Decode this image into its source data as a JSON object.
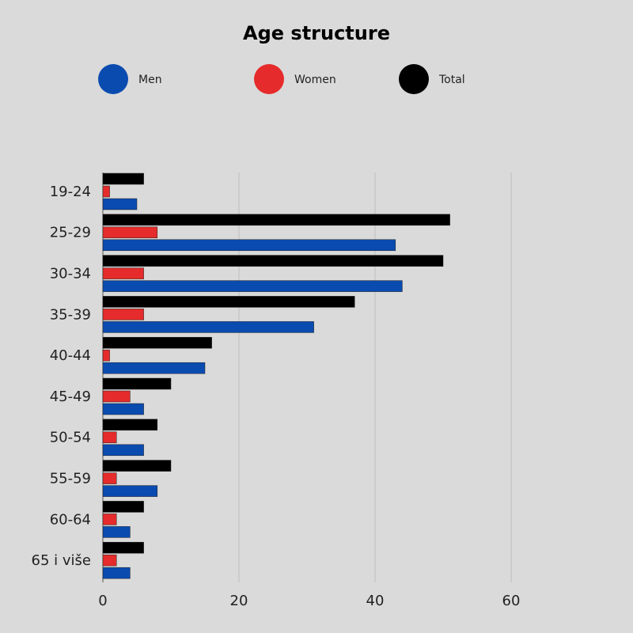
{
  "chart_data": {
    "type": "bar",
    "orientation": "horizontal",
    "title": "Age structure",
    "xlabel": "",
    "ylabel": "",
    "categories": [
      "19-24",
      "25-29",
      "30-34",
      "35-39",
      "40-44",
      "45-49",
      "50-54",
      "55-59",
      "60-64",
      "65 i više"
    ],
    "series": [
      {
        "name": "Total",
        "color": "#000000",
        "values": [
          6,
          51,
          50,
          37,
          16,
          10,
          8,
          10,
          6,
          6
        ]
      },
      {
        "name": "Women",
        "color": "#e52b2b",
        "values": [
          1,
          8,
          6,
          6,
          1,
          4,
          2,
          2,
          2,
          2
        ]
      },
      {
        "name": "Men",
        "color": "#0a4bb0",
        "values": [
          5,
          43,
          44,
          31,
          15,
          6,
          6,
          8,
          4,
          4
        ]
      }
    ],
    "legend_order": [
      "Men",
      "Women",
      "Total"
    ],
    "legend_position": "top",
    "xlim": [
      0,
      75
    ],
    "xticks": [
      0,
      20,
      40,
      60
    ],
    "grid": true
  }
}
